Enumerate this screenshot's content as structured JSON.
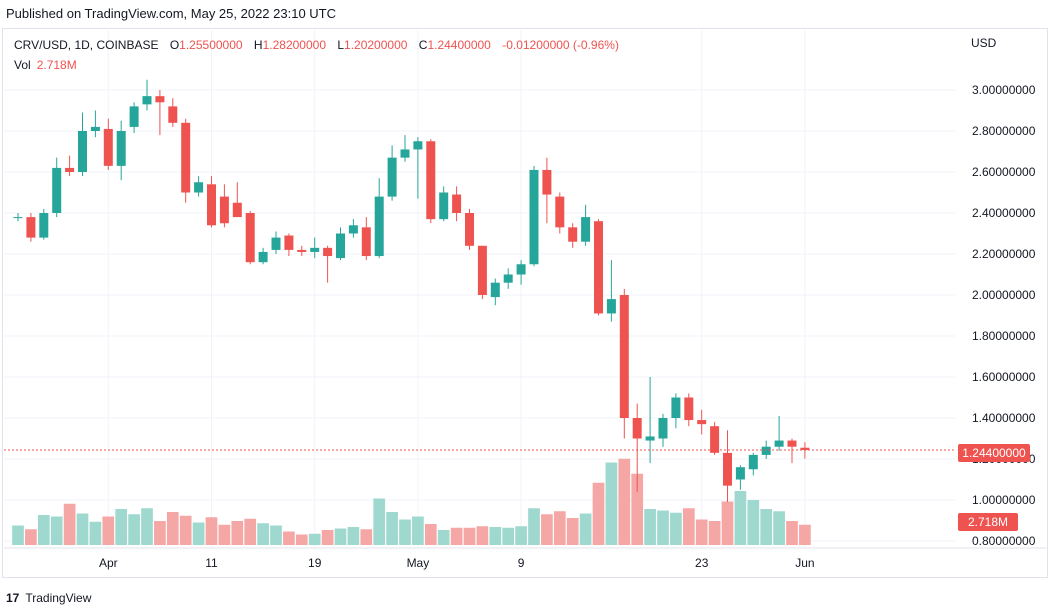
{
  "published": "Published on TradingView.com, May 25, 2022 23:10 UTC",
  "legend": {
    "symbol": "CRV/USD, 1D, COINBASE",
    "o_label": "O",
    "o_value": "1.25500000",
    "h_label": "H",
    "h_value": "1.28200000",
    "l_label": "L",
    "l_value": "1.20200000",
    "c_label": "C",
    "c_value": "1.24400000",
    "change": "-0.01200000 (-0.96%)",
    "vol_label": "Vol",
    "vol_value": "2.718M"
  },
  "currency": "USD",
  "last_price_label": "1.24400000",
  "last_volume_label": "2.718M",
  "footer": {
    "logo": "17",
    "brand": "TradingView"
  },
  "colors": {
    "up": "#26a69a",
    "down": "#ef5350",
    "up_vol": "#9fd8cf",
    "down_vol": "#f4a7a5",
    "grid": "#f0f3fa"
  },
  "chart_data": {
    "type": "candlestick",
    "title": "CRV/USD, 1D, COINBASE",
    "y_axis_ticks": [
      "3.00000000",
      "2.80000000",
      "2.60000000",
      "2.40000000",
      "2.20000000",
      "2.00000000",
      "1.80000000",
      "1.60000000",
      "1.40000000",
      "1.20000000",
      "1.00000000",
      "0.80000000"
    ],
    "y_tick_values": [
      3.0,
      2.8,
      2.6,
      2.4,
      2.2,
      2.0,
      1.8,
      1.6,
      1.4,
      1.2,
      1.0,
      0.8
    ],
    "ylim": [
      0.8,
      3.1
    ],
    "x_axis_labels": [
      "Apr",
      "11",
      "19",
      "May",
      "9",
      "23",
      "Jun"
    ],
    "x_label_index": [
      7,
      15,
      23,
      31,
      39,
      53,
      61
    ],
    "last_price": 1.244,
    "candles": [
      {
        "o": 2.38,
        "h": 2.4,
        "l": 2.36,
        "c": 2.38
      },
      {
        "o": 2.38,
        "h": 2.4,
        "l": 2.26,
        "c": 2.28
      },
      {
        "o": 2.28,
        "h": 2.42,
        "l": 2.27,
        "c": 2.4
      },
      {
        "o": 2.4,
        "h": 2.67,
        "l": 2.38,
        "c": 2.62
      },
      {
        "o": 2.62,
        "h": 2.68,
        "l": 2.58,
        "c": 2.6
      },
      {
        "o": 2.6,
        "h": 2.89,
        "l": 2.58,
        "c": 2.8
      },
      {
        "o": 2.8,
        "h": 2.9,
        "l": 2.77,
        "c": 2.82
      },
      {
        "o": 2.81,
        "h": 2.86,
        "l": 2.61,
        "c": 2.63
      },
      {
        "o": 2.63,
        "h": 2.85,
        "l": 2.56,
        "c": 2.8
      },
      {
        "o": 2.82,
        "h": 2.94,
        "l": 2.79,
        "c": 2.92
      },
      {
        "o": 2.93,
        "h": 3.05,
        "l": 2.9,
        "c": 2.97
      },
      {
        "o": 2.97,
        "h": 3.0,
        "l": 2.78,
        "c": 2.94
      },
      {
        "o": 2.92,
        "h": 2.96,
        "l": 2.82,
        "c": 2.84
      },
      {
        "o": 2.84,
        "h": 2.86,
        "l": 2.45,
        "c": 2.5
      },
      {
        "o": 2.5,
        "h": 2.58,
        "l": 2.48,
        "c": 2.55
      },
      {
        "o": 2.54,
        "h": 2.58,
        "l": 2.33,
        "c": 2.34
      },
      {
        "o": 2.48,
        "h": 2.54,
        "l": 2.33,
        "c": 2.35
      },
      {
        "o": 2.45,
        "h": 2.55,
        "l": 2.4,
        "c": 2.38
      },
      {
        "o": 2.4,
        "h": 2.41,
        "l": 2.15,
        "c": 2.16
      },
      {
        "o": 2.16,
        "h": 2.23,
        "l": 2.15,
        "c": 2.21
      },
      {
        "o": 2.22,
        "h": 2.31,
        "l": 2.2,
        "c": 2.28
      },
      {
        "o": 2.29,
        "h": 2.3,
        "l": 2.19,
        "c": 2.22
      },
      {
        "o": 2.22,
        "h": 2.24,
        "l": 2.19,
        "c": 2.21
      },
      {
        "o": 2.21,
        "h": 2.28,
        "l": 2.18,
        "c": 2.23
      },
      {
        "o": 2.23,
        "h": 2.24,
        "l": 2.06,
        "c": 2.19
      },
      {
        "o": 2.18,
        "h": 2.33,
        "l": 2.17,
        "c": 2.3
      },
      {
        "o": 2.3,
        "h": 2.37,
        "l": 2.28,
        "c": 2.34
      },
      {
        "o": 2.33,
        "h": 2.38,
        "l": 2.17,
        "c": 2.19
      },
      {
        "o": 2.19,
        "h": 2.57,
        "l": 2.18,
        "c": 2.48
      },
      {
        "o": 2.48,
        "h": 2.73,
        "l": 2.46,
        "c": 2.67
      },
      {
        "o": 2.67,
        "h": 2.78,
        "l": 2.65,
        "c": 2.71
      },
      {
        "o": 2.71,
        "h": 2.77,
        "l": 2.47,
        "c": 2.75
      },
      {
        "o": 2.75,
        "h": 2.76,
        "l": 2.35,
        "c": 2.37
      },
      {
        "o": 2.37,
        "h": 2.53,
        "l": 2.36,
        "c": 2.5
      },
      {
        "o": 2.49,
        "h": 2.53,
        "l": 2.36,
        "c": 2.4
      },
      {
        "o": 2.4,
        "h": 2.42,
        "l": 2.22,
        "c": 2.24
      },
      {
        "o": 2.24,
        "h": 2.24,
        "l": 1.98,
        "c": 2.0
      },
      {
        "o": 1.99,
        "h": 2.08,
        "l": 1.95,
        "c": 2.06
      },
      {
        "o": 2.06,
        "h": 2.13,
        "l": 2.03,
        "c": 2.1
      },
      {
        "o": 2.1,
        "h": 2.17,
        "l": 2.05,
        "c": 2.15
      },
      {
        "o": 2.15,
        "h": 2.63,
        "l": 2.14,
        "c": 2.61
      },
      {
        "o": 2.61,
        "h": 2.67,
        "l": 2.35,
        "c": 2.49
      },
      {
        "o": 2.48,
        "h": 2.5,
        "l": 2.3,
        "c": 2.33
      },
      {
        "o": 2.33,
        "h": 2.35,
        "l": 2.23,
        "c": 2.26
      },
      {
        "o": 2.26,
        "h": 2.44,
        "l": 2.24,
        "c": 2.38
      },
      {
        "o": 2.36,
        "h": 2.37,
        "l": 1.9,
        "c": 1.91
      },
      {
        "o": 1.91,
        "h": 2.17,
        "l": 1.87,
        "c": 1.98
      },
      {
        "o": 2.0,
        "h": 2.03,
        "l": 1.3,
        "c": 1.4
      },
      {
        "o": 1.4,
        "h": 1.47,
        "l": 1.04,
        "c": 1.3
      },
      {
        "o": 1.29,
        "h": 1.6,
        "l": 1.18,
        "c": 1.31
      },
      {
        "o": 1.3,
        "h": 1.42,
        "l": 1.26,
        "c": 1.4
      },
      {
        "o": 1.4,
        "h": 1.52,
        "l": 1.35,
        "c": 1.5
      },
      {
        "o": 1.5,
        "h": 1.52,
        "l": 1.36,
        "c": 1.39
      },
      {
        "o": 1.39,
        "h": 1.44,
        "l": 1.32,
        "c": 1.37
      },
      {
        "o": 1.36,
        "h": 1.38,
        "l": 1.22,
        "c": 1.23
      },
      {
        "o": 1.23,
        "h": 1.34,
        "l": 0.99,
        "c": 1.07
      },
      {
        "o": 1.1,
        "h": 1.17,
        "l": 1.05,
        "c": 1.16
      },
      {
        "o": 1.15,
        "h": 1.23,
        "l": 1.12,
        "c": 1.22
      },
      {
        "o": 1.22,
        "h": 1.29,
        "l": 1.2,
        "c": 1.26
      },
      {
        "o": 1.26,
        "h": 1.41,
        "l": 1.24,
        "c": 1.29
      },
      {
        "o": 1.29,
        "h": 1.3,
        "l": 1.18,
        "c": 1.26
      },
      {
        "o": 1.255,
        "h": 1.282,
        "l": 1.202,
        "c": 1.244
      }
    ],
    "volume_unit": "M",
    "volume": [
      2.6,
      2.1,
      4.0,
      3.8,
      5.5,
      4.2,
      3.1,
      3.8,
      4.8,
      4.1,
      4.9,
      3.2,
      4.4,
      3.9,
      3.0,
      3.7,
      2.7,
      3.2,
      3.5,
      2.9,
      2.6,
      1.8,
      1.4,
      1.5,
      2.0,
      2.2,
      2.4,
      2.1,
      6.2,
      4.4,
      3.4,
      3.8,
      2.8,
      2.0,
      2.3,
      2.3,
      2.5,
      2.4,
      2.3,
      2.5,
      4.9,
      4.1,
      4.5,
      3.6,
      4.2,
      8.3,
      11.0,
      11.5,
      9.5,
      4.8,
      4.6,
      4.3,
      4.9,
      3.4,
      3.2,
      5.8,
      7.2,
      6.0,
      4.8,
      4.5,
      3.2,
      2.7
    ],
    "vol_ylim": [
      0,
      12
    ]
  }
}
